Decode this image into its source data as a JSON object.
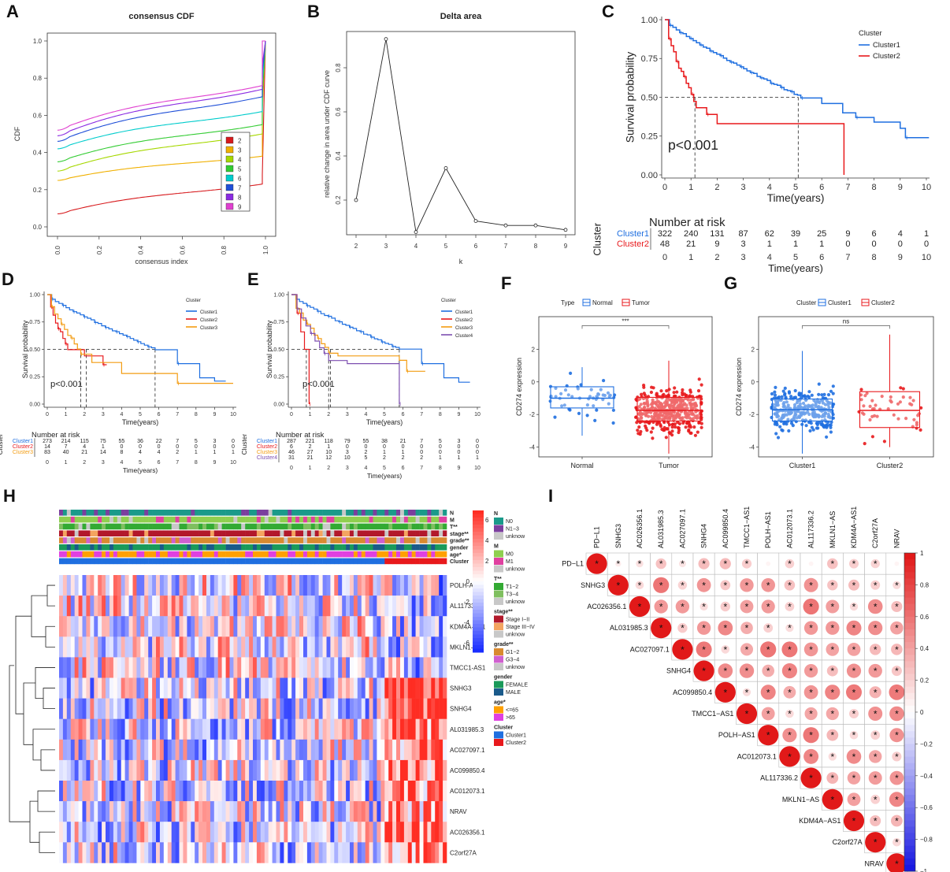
{
  "panels": {
    "A": {
      "label": "A",
      "title": "consensus CDF",
      "xlabel": "consensus index",
      "ylabel": "CDF",
      "xticks": [
        "0.0",
        "0.2",
        "0.4",
        "0.6",
        "0.8",
        "1.0"
      ],
      "yticks": [
        "0.0",
        "0.2",
        "0.4",
        "0.6",
        "0.8",
        "1.0"
      ],
      "legend": [
        {
          "k": "2",
          "color": "#d7191c"
        },
        {
          "k": "3",
          "color": "#f0b000"
        },
        {
          "k": "4",
          "color": "#a6d800"
        },
        {
          "k": "5",
          "color": "#33cc33"
        },
        {
          "k": "6",
          "color": "#00cccc"
        },
        {
          "k": "7",
          "color": "#1f4fd8"
        },
        {
          "k": "8",
          "color": "#8a2be2"
        },
        {
          "k": "9",
          "color": "#e040d0"
        }
      ]
    },
    "B": {
      "label": "B",
      "title": "Delta area",
      "xlabel": "k",
      "ylabel": "relative change in area under CDF curve",
      "xticks": [
        "2",
        "3",
        "4",
        "5",
        "6",
        "7",
        "8",
        "9"
      ],
      "yticks": [
        "0.2",
        "0.4",
        "0.6",
        "0.8"
      ]
    },
    "C": {
      "label": "C",
      "ylabel": "Survival probability",
      "xlabel": "Time(years)",
      "pvalue": "p<0.001",
      "legend_title": "Cluster",
      "series": [
        {
          "name": "Cluster1",
          "color": "#1f6fe0"
        },
        {
          "name": "Cluster2",
          "color": "#e8191c"
        }
      ],
      "yticks": [
        "0.00",
        "0.25",
        "0.50",
        "0.75",
        "1.00"
      ],
      "xticks": [
        "0",
        "1",
        "2",
        "3",
        "4",
        "5",
        "6",
        "7",
        "8",
        "9",
        "10"
      ],
      "risk_title": "Number at risk",
      "risk_ylabel": "Cluster",
      "risk": [
        {
          "name": "Cluster1",
          "values": [
            "322",
            "240",
            "131",
            "87",
            "62",
            "39",
            "25",
            "9",
            "6",
            "4",
            "1"
          ]
        },
        {
          "name": "Cluster2",
          "values": [
            "48",
            "21",
            "9",
            "3",
            "1",
            "1",
            "1",
            "0",
            "0",
            "0",
            "0"
          ]
        }
      ]
    },
    "D": {
      "label": "D",
      "ylabel": "Survival probability",
      "xlabel": "Time(years)",
      "pvalue": "p<0.001",
      "legend_title": "Cluster",
      "series": [
        {
          "name": "Cluster1",
          "color": "#1f6fe0"
        },
        {
          "name": "Cluster2",
          "color": "#e8191c"
        },
        {
          "name": "Cluster3",
          "color": "#f39c12"
        }
      ],
      "yticks": [
        "0.00",
        "0.25",
        "0.50",
        "0.75",
        "1.00"
      ],
      "xticks": [
        "0",
        "1",
        "2",
        "3",
        "4",
        "5",
        "6",
        "7",
        "8",
        "9",
        "10"
      ],
      "risk_title": "Number at risk",
      "risk_ylabel": "Cluster",
      "risk": [
        {
          "name": "Cluster1",
          "values": [
            "273",
            "214",
            "115",
            "75",
            "55",
            "36",
            "22",
            "7",
            "5",
            "3",
            "0"
          ]
        },
        {
          "name": "Cluster2",
          "values": [
            "14",
            "7",
            "4",
            "1",
            "0",
            "0",
            "0",
            "0",
            "0",
            "0",
            "0"
          ]
        },
        {
          "name": "Cluster3",
          "values": [
            "83",
            "40",
            "21",
            "14",
            "8",
            "4",
            "4",
            "2",
            "1",
            "1",
            "1"
          ]
        }
      ]
    },
    "E": {
      "label": "E",
      "ylabel": "Survival probability",
      "xlabel": "Time(years)",
      "pvalue": "p<0.001",
      "legend_title": "Cluster",
      "series": [
        {
          "name": "Cluster1",
          "color": "#1f6fe0"
        },
        {
          "name": "Cluster2",
          "color": "#e8191c"
        },
        {
          "name": "Cluster3",
          "color": "#f39c12"
        },
        {
          "name": "Cluster4",
          "color": "#7d4fb0"
        }
      ],
      "yticks": [
        "0.00",
        "0.25",
        "0.50",
        "0.75",
        "1.00"
      ],
      "xticks": [
        "0",
        "1",
        "2",
        "3",
        "4",
        "5",
        "6",
        "7",
        "8",
        "9",
        "10"
      ],
      "risk_title": "Number at risk",
      "risk_ylabel": "Cluster",
      "risk": [
        {
          "name": "Cluster1",
          "values": [
            "287",
            "221",
            "118",
            "79",
            "55",
            "38",
            "21",
            "7",
            "5",
            "3",
            "0"
          ]
        },
        {
          "name": "Cluster2",
          "values": [
            "6",
            "2",
            "1",
            "0",
            "0",
            "0",
            "0",
            "0",
            "0",
            "0",
            "0"
          ]
        },
        {
          "name": "Cluster3",
          "values": [
            "46",
            "27",
            "10",
            "3",
            "2",
            "1",
            "1",
            "0",
            "0",
            "0",
            "0"
          ]
        },
        {
          "name": "Cluster4",
          "values": [
            "31",
            "21",
            "12",
            "10",
            "5",
            "2",
            "2",
            "2",
            "1",
            "1",
            "1"
          ]
        }
      ]
    },
    "F": {
      "label": "F",
      "ylabel": "CD274 expression",
      "legend_title": "Type",
      "groups": [
        {
          "name": "Normal",
          "color": "#1f6fe0"
        },
        {
          "name": "Tumor",
          "color": "#e8191c"
        }
      ],
      "significance": "***",
      "yticks": [
        "-4",
        "-2",
        "0",
        "2"
      ]
    },
    "G": {
      "label": "G",
      "ylabel": "CD274 expression",
      "legend_title": "Cluster",
      "groups": [
        {
          "name": "Cluster1",
          "color": "#1f6fe0"
        },
        {
          "name": "Cluster2",
          "color": "#e8191c"
        }
      ],
      "significance": "ns",
      "yticks": [
        "-4",
        "-2",
        "0",
        "2"
      ]
    },
    "H": {
      "label": "H",
      "annotations": [
        "N",
        "M",
        "T**",
        "stage**",
        "grade**",
        "gender",
        "age*",
        "Cluster"
      ],
      "genes": [
        "POLH-AS1",
        "AL117336.2",
        "KDM4A-AS1",
        "MKLN1-AS",
        "TMCC1-AS1",
        "SNHG3",
        "SNHG4",
        "AL031985.3",
        "AC027097.1",
        "AC099850.4",
        "AC012073.1",
        "NRAV",
        "AC026356.1",
        "C2orf27A"
      ],
      "colorbar": [
        "6",
        "4",
        "2",
        "0",
        "-2",
        "-4",
        "-6"
      ],
      "legend": [
        {
          "title": "N",
          "items": [
            {
              "label": "N0",
              "color": "#1a9a8a"
            },
            {
              "label": "N1−3",
              "color": "#7b3f9e"
            },
            {
              "label": "unknow",
              "color": "#c8c8c8"
            }
          ]
        },
        {
          "title": "M",
          "items": [
            {
              "label": "M0",
              "color": "#8fcf4f"
            },
            {
              "label": "M1",
              "color": "#e040a0"
            },
            {
              "label": "unknow",
              "color": "#c8c8c8"
            }
          ]
        },
        {
          "title": "T**",
          "items": [
            {
              "label": "T1−2",
              "color": "#33aa33"
            },
            {
              "label": "T3−4",
              "color": "#7fbf5f"
            },
            {
              "label": "unknow",
              "color": "#c8c8c8"
            }
          ]
        },
        {
          "title": "stage**",
          "items": [
            {
              "label": "Stage I−II",
              "color": "#b2182b"
            },
            {
              "label": "Stage III−IV",
              "color": "#f4a460"
            },
            {
              "label": "unknow",
              "color": "#c8c8c8"
            }
          ]
        },
        {
          "title": "grade**",
          "items": [
            {
              "label": "G1−2",
              "color": "#d98a30"
            },
            {
              "label": "G3−4",
              "color": "#d060d0"
            },
            {
              "label": "unknow",
              "color": "#c8c8c8"
            }
          ]
        },
        {
          "title": "gender",
          "items": [
            {
              "label": "FEMALE",
              "color": "#1a9a5a"
            },
            {
              "label": "MALE",
              "color": "#1a5a8a"
            }
          ]
        },
        {
          "title": "age*",
          "items": [
            {
              "label": "<=65",
              "color": "#ffa000"
            },
            {
              "label": ">65",
              "color": "#e040e0"
            }
          ]
        },
        {
          "title": "Cluster",
          "items": [
            {
              "label": "Cluster1",
              "color": "#1f6fe0"
            },
            {
              "label": "Cluster2",
              "color": "#e8191c"
            }
          ]
        }
      ]
    },
    "I": {
      "label": "I",
      "labels": [
        "PD−L1",
        "SNHG3",
        "AC026356.1",
        "AL031985.3",
        "AC027097.1",
        "SNHG4",
        "AC099850.4",
        "TMCC1−AS1",
        "POLH−AS1",
        "AC012073.1",
        "AL117336.2",
        "MKLN1−AS",
        "KDM4A−AS1",
        "C2orf27A",
        "NRAV"
      ],
      "colorbar": [
        "1",
        "0.8",
        "0.6",
        "0.4",
        "0.2",
        "0",
        "−0.2",
        "−0.4",
        "−0.6",
        "−0.8",
        "−1"
      ],
      "star": "*"
    }
  }
}
